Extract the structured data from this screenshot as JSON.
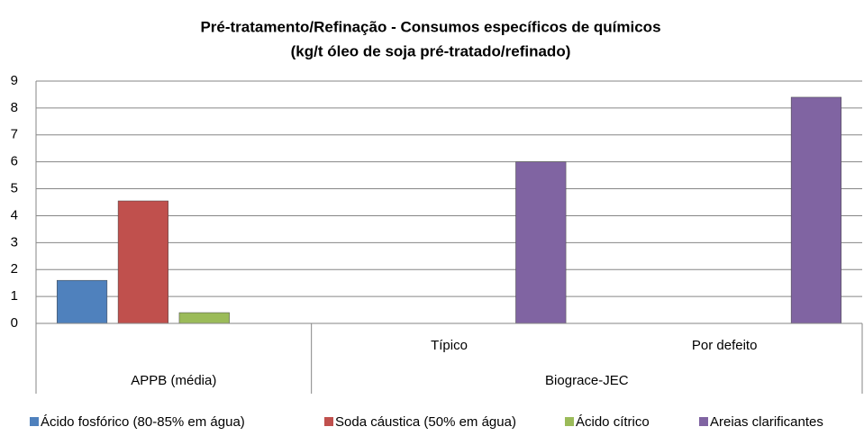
{
  "chart_data": {
    "type": "bar",
    "title": "Pré-tratamento/Refinação - Consumos específicos de químicos",
    "subtitle": "(kg/t óleo de soja pré-tratado/refinado)",
    "categories": [
      null,
      "Típico",
      "Por defeito"
    ],
    "groups": [
      {
        "name": "APPB (média)",
        "span": 1
      },
      {
        "name": "Biograce-JEC",
        "span": 2
      }
    ],
    "series": [
      {
        "name": "Ácido fosfórico (80-85% em água)",
        "color": "#4f81bd",
        "values": [
          1.6,
          null,
          null
        ]
      },
      {
        "name": "Soda cáustica (50% em água)",
        "color": "#c0504d",
        "values": [
          4.55,
          null,
          null
        ]
      },
      {
        "name": "Ácido cítrico",
        "color": "#9bbb59",
        "values": [
          0.4,
          null,
          null
        ]
      },
      {
        "name": "Areias clarificantes",
        "color": "#8064a2",
        "values": [
          null,
          6.0,
          8.4
        ]
      }
    ],
    "ylim": [
      0,
      9
    ],
    "yticks": [
      0,
      1,
      2,
      3,
      4,
      5,
      6,
      7,
      8,
      9
    ],
    "grid": true,
    "legend": "bottom"
  }
}
